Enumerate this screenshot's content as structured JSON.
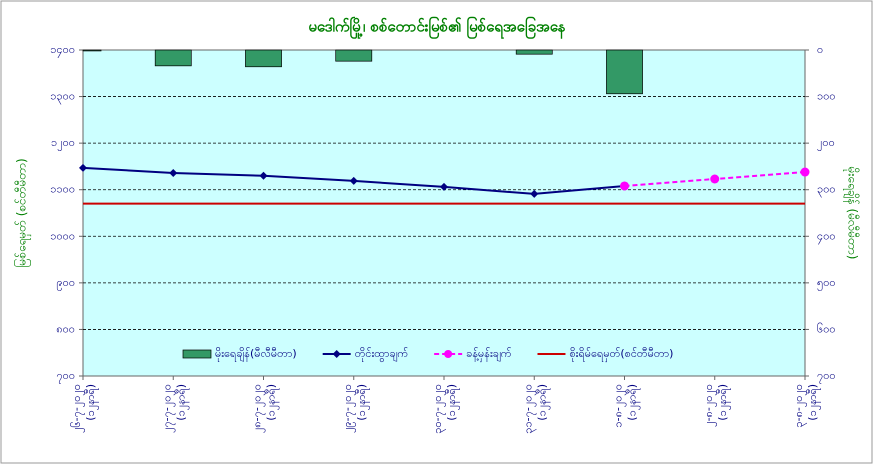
{
  "chart_data": {
    "type": "combo",
    "title": "မဒေါက်မြို့၊ စစ်တောင်းမြစ်၏ မြစ်ရေအခြေအနေ",
    "y_label": "မြစ်ရေမှတ် (စင်တီမီတာ)",
    "y2_label": "မိုးရေချိန် (မီလီမီတာ)",
    "categories": [
      "၂၆-၇-၂၀၂၀",
      "၂၇-၇-၂၀၂၀",
      "၂၈-၇-၂၀၂၀",
      "၂၉-၇-၂၀၂၀",
      "၃၀-၇-၂၀၂၀",
      "၃၁-၇-၂၀၂၀",
      "၁-၈-၂၀၂၀",
      "၂-၈-၂၀၂၀",
      "၃-၈-၂၀၂၀"
    ],
    "category_notes": [
      "(၁၂နာရီ)",
      "(၁၂နာရီ)",
      "(၁၂နာရီ)",
      "(၁၂နာရီ)",
      "(၁၂နာရီ)",
      "(၁၂နာရီ)",
      "(၁၂နာရီ)",
      "(၁၂နာရီ)",
      "(၁၂နာရီ)"
    ],
    "ylim": [
      700,
      1400
    ],
    "yticks": [
      {
        "value": 700,
        "label": "၇၀၀"
      },
      {
        "value": 800,
        "label": "၈၀၀"
      },
      {
        "value": 900,
        "label": "၉၀၀"
      },
      {
        "value": 1000,
        "label": "၁၀၀၀"
      },
      {
        "value": 1100,
        "label": "၁၁၀၀"
      },
      {
        "value": 1200,
        "label": "၁၂၀၀"
      },
      {
        "value": 1300,
        "label": "၁၃၀၀"
      },
      {
        "value": 1400,
        "label": "၁၄၀၀"
      }
    ],
    "y2lim": [
      700,
      0
    ],
    "y2ticks": [
      {
        "value": 700,
        "label": "၇၀၀"
      },
      {
        "value": 600,
        "label": "၆၀၀"
      },
      {
        "value": 500,
        "label": "၅၀၀"
      },
      {
        "value": 400,
        "label": "၄၀၀"
      },
      {
        "value": 300,
        "label": "၃၀၀"
      },
      {
        "value": 200,
        "label": "၂၀၀"
      },
      {
        "value": 100,
        "label": "၁၀၀"
      },
      {
        "value": 0,
        "label": "၀"
      }
    ],
    "grid": true,
    "series": [
      {
        "name": "မိုးရေချိန်(မီလီမီတာ)",
        "color": "#339966",
        "kind": "bar",
        "axis": "y2",
        "values": [
          2,
          34,
          36,
          24,
          0,
          9,
          94,
          null,
          null
        ]
      },
      {
        "name": "တိုင်းထွာချက်",
        "color": "#000080",
        "kind": "line",
        "values": [
          1147,
          1136,
          1130,
          1119,
          1106,
          1091,
          1108,
          null,
          null
        ]
      },
      {
        "name": "ခန့်မှန်းချက်",
        "color": "#ff00ff",
        "kind": "dashed",
        "values": [
          null,
          null,
          null,
          null,
          null,
          null,
          1108,
          1123,
          1138
        ]
      }
    ],
    "threshold": {
      "name": "စိုးရိမ်ရေမှတ်(စင်တီမီတာ)",
      "color": "#cc0000",
      "value": 1070
    }
  }
}
